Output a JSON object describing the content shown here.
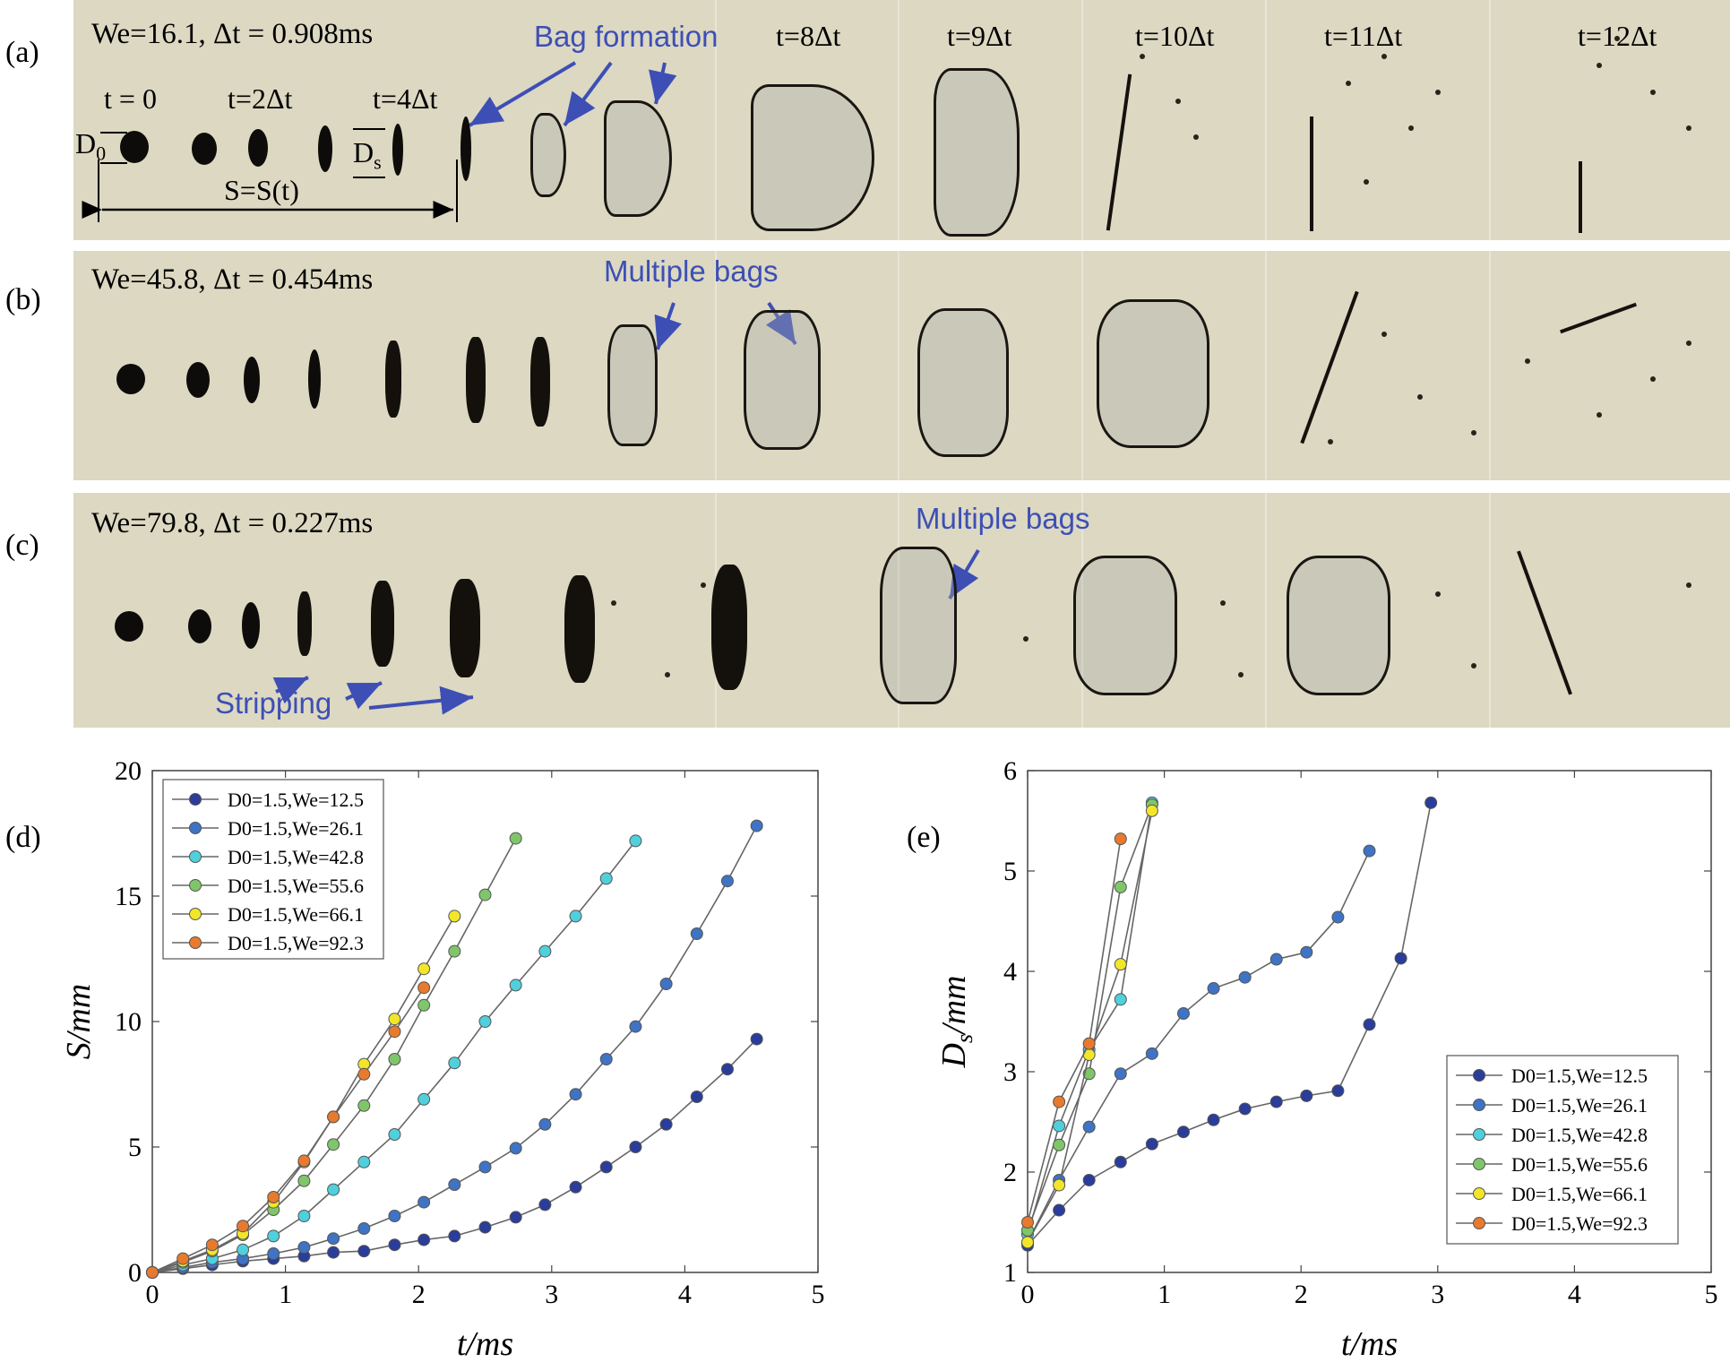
{
  "panels": {
    "a": {
      "label": "(a)",
      "title": "We=16.1, Δt = 0.908ms",
      "time_labels": [
        "t = 0",
        "t=2Δt",
        "t=4Δt",
        "t=8Δt",
        "t=9Δt",
        "t=10Δt",
        "t=11Δt",
        "t=12Δt"
      ],
      "annotations": {
        "bag": "Bag formation",
        "d0": "D",
        "d0_sub": "0",
        "ds": "D",
        "ds_sub": "s",
        "s": "S=S(t)"
      }
    },
    "b": {
      "label": "(b)",
      "title": "We=45.8, Δt = 0.454ms",
      "annotations": {
        "bags": "Multiple bags"
      }
    },
    "c": {
      "label": "(c)",
      "title": "We=79.8, Δt = 0.227ms",
      "annotations": {
        "bags": "Multiple bags",
        "stripping": "Stripping"
      }
    },
    "d": {
      "label": "(d)"
    },
    "e": {
      "label": "(e)"
    }
  },
  "colors": {
    "background_strip": "#dcd8c2",
    "annotation_blue": "#3d4fb5",
    "series": [
      "#2a3d9a",
      "#3f73c4",
      "#4fd0dc",
      "#7fc66a",
      "#f2e62a",
      "#e87a2e"
    ]
  },
  "chart_data": [
    {
      "type": "line",
      "id": "d",
      "xlabel": "t/ms",
      "ylabel": "S/mm",
      "xlim": [
        0,
        5
      ],
      "ylim": [
        0,
        20
      ],
      "xticks": [
        "0",
        "1",
        "2",
        "3",
        "4",
        "5"
      ],
      "yticks": [
        "0",
        "5",
        "10",
        "15",
        "20"
      ],
      "legend_position": "top-left",
      "series": [
        {
          "name": "D0=1.5,We=12.5",
          "x": [
            0,
            0.23,
            0.45,
            0.68,
            0.91,
            1.14,
            1.36,
            1.59,
            1.82,
            2.04,
            2.27,
            2.5,
            2.73,
            2.95,
            3.18,
            3.41,
            3.63,
            3.86,
            4.09,
            4.32,
            4.54
          ],
          "y": [
            0,
            0.15,
            0.3,
            0.45,
            0.55,
            0.65,
            0.8,
            0.85,
            1.1,
            1.3,
            1.45,
            1.8,
            2.2,
            2.7,
            3.4,
            4.2,
            5.0,
            5.9,
            7.0,
            8.1,
            9.3
          ]
        },
        {
          "name": "D0=1.5,We=26.1",
          "x": [
            0,
            0.23,
            0.45,
            0.68,
            0.91,
            1.14,
            1.36,
            1.59,
            1.82,
            2.04,
            2.27,
            2.5,
            2.73,
            2.95,
            3.18,
            3.41,
            3.63,
            3.86,
            4.09,
            4.32,
            4.54
          ],
          "y": [
            0,
            0.2,
            0.4,
            0.55,
            0.75,
            1.0,
            1.35,
            1.75,
            2.25,
            2.8,
            3.5,
            4.2,
            4.95,
            5.9,
            7.1,
            8.5,
            9.8,
            11.5,
            13.5,
            15.6,
            17.8
          ]
        },
        {
          "name": "D0=1.5,We=42.8",
          "x": [
            0,
            0.23,
            0.45,
            0.68,
            0.91,
            1.14,
            1.36,
            1.59,
            1.82,
            2.04,
            2.27,
            2.5,
            2.73,
            2.95,
            3.18,
            3.41,
            3.63
          ],
          "y": [
            0,
            0.3,
            0.55,
            0.9,
            1.45,
            2.25,
            3.3,
            4.4,
            5.5,
            6.9,
            8.35,
            10.0,
            11.45,
            12.8,
            14.2,
            15.7,
            17.2
          ]
        },
        {
          "name": "D0=1.5,We=55.6",
          "x": [
            0,
            0.23,
            0.45,
            0.68,
            0.91,
            1.14,
            1.36,
            1.59,
            1.82,
            2.04,
            2.27,
            2.5,
            2.73
          ],
          "y": [
            0,
            0.4,
            0.85,
            1.5,
            2.5,
            3.65,
            5.1,
            6.65,
            8.5,
            10.65,
            12.8,
            15.05,
            17.3
          ]
        },
        {
          "name": "D0=1.5,We=66.1",
          "x": [
            0,
            0.23,
            0.45,
            0.68,
            0.91,
            1.14,
            1.36,
            1.59,
            1.82,
            2.04,
            2.27
          ],
          "y": [
            0,
            0.45,
            0.9,
            1.55,
            2.8,
            4.4,
            6.2,
            8.3,
            10.1,
            12.1,
            14.2
          ]
        },
        {
          "name": "D0=1.5,We=92.3",
          "x": [
            0,
            0.23,
            0.45,
            0.68,
            0.91,
            1.14,
            1.36,
            1.59,
            1.82,
            2.04
          ],
          "y": [
            0,
            0.55,
            1.1,
            1.85,
            3.0,
            4.45,
            6.2,
            7.9,
            9.6,
            11.35
          ]
        }
      ]
    },
    {
      "type": "line",
      "id": "e",
      "xlabel": "t/ms",
      "ylabel": "D_s/mm",
      "xlim": [
        0,
        5
      ],
      "ylim": [
        1,
        6
      ],
      "xticks": [
        "0",
        "1",
        "2",
        "3",
        "4",
        "5"
      ],
      "yticks": [
        "1",
        "2",
        "3",
        "4",
        "5",
        "6"
      ],
      "legend_position": "bottom-right",
      "series": [
        {
          "name": "D0=1.5,We=12.5",
          "x": [
            0,
            0.23,
            0.45,
            0.68,
            0.91,
            1.14,
            1.36,
            1.59,
            1.82,
            2.04,
            2.27,
            2.5,
            2.73,
            2.95
          ],
          "y": [
            1.27,
            1.62,
            1.92,
            2.1,
            2.28,
            2.4,
            2.52,
            2.63,
            2.7,
            2.76,
            2.81,
            3.47,
            4.13,
            5.68
          ]
        },
        {
          "name": "D0=1.5,We=26.1",
          "x": [
            0,
            0.23,
            0.45,
            0.68,
            0.91,
            1.14,
            1.36,
            1.59,
            1.82,
            2.04,
            2.27,
            2.5
          ],
          "y": [
            1.3,
            1.92,
            2.45,
            2.98,
            3.18,
            3.58,
            3.83,
            3.94,
            4.12,
            4.19,
            4.54,
            5.2
          ]
        },
        {
          "name": "D0=1.5,We=42.8",
          "x": [
            0,
            0.23,
            0.45,
            0.68,
            0.91
          ],
          "y": [
            1.38,
            2.46,
            3.22,
            3.72,
            5.68
          ]
        },
        {
          "name": "D0=1.5,We=55.6",
          "x": [
            0,
            0.23,
            0.45,
            0.68,
            0.91
          ],
          "y": [
            1.42,
            2.27,
            2.98,
            4.84,
            5.66
          ]
        },
        {
          "name": "D0=1.5,We=66.1",
          "x": [
            0,
            0.23,
            0.45,
            0.68,
            0.91
          ],
          "y": [
            1.3,
            1.87,
            3.17,
            4.07,
            5.6
          ]
        },
        {
          "name": "D0=1.5,We=92.3",
          "x": [
            0,
            0.23,
            0.45,
            0.68
          ],
          "y": [
            1.5,
            2.7,
            3.28,
            5.32
          ]
        }
      ]
    }
  ]
}
